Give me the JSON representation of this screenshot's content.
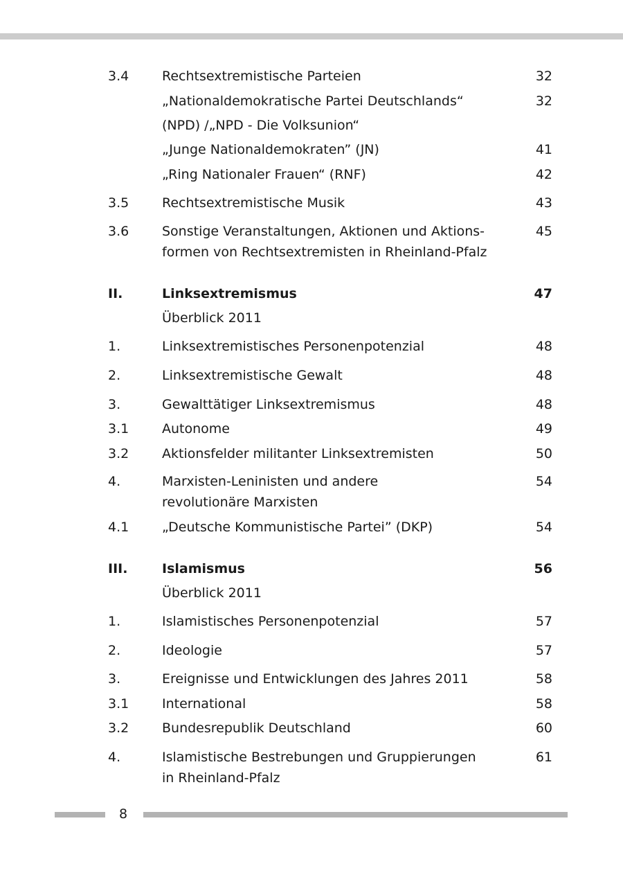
{
  "entries": [
    {
      "num": "3.4",
      "title": "Rechtsextremistische Parteien",
      "page": "32"
    },
    {
      "num": "",
      "title": "„Nationaldemokratische Partei Deutschlands“",
      "page": "32"
    },
    {
      "num": "",
      "title": "(NPD) /„NPD - Die Volksunion“",
      "page": ""
    },
    {
      "num": "",
      "title": "„Junge Nationaldemokraten” (JN)",
      "page": "41"
    },
    {
      "num": "",
      "title": "„Ring Nationaler Frauen“ (RNF)",
      "page": "42"
    },
    {
      "num": "3.5",
      "title": "Rechtsextremistische Musik",
      "page": "43"
    },
    {
      "num": "3.6",
      "title": "Sonstige Veranstaltungen, Aktionen und Aktions-\nformen von Rechtsextremisten in Rheinland-Pfalz",
      "page": "45"
    },
    {
      "num": "II.",
      "title": "Linksextremismus",
      "page": "47"
    },
    {
      "num": "",
      "title": "Überblick 2011",
      "page": ""
    },
    {
      "num": "1.",
      "title": "Linksextremistisches Personenpotenzial",
      "page": "48"
    },
    {
      "num": "2.",
      "title": "Linksextremistische Gewalt",
      "page": "48"
    },
    {
      "num": "3.",
      "title": "Gewalttätiger Linksextremismus",
      "page": "48"
    },
    {
      "num": "3.1",
      "title": "Autonome",
      "page": "49"
    },
    {
      "num": "3.2",
      "title": "Aktionsfelder militanter Linksextremisten",
      "page": "50"
    },
    {
      "num": "4.",
      "title": "Marxisten-Leninisten und andere\nrevolutionäre Marxisten",
      "page": "54"
    },
    {
      "num": "4.1",
      "title": "„Deutsche Kommunistische Partei” (DKP)",
      "page": "54"
    },
    {
      "num": "III.",
      "title": "Islamismus",
      "page": "56"
    },
    {
      "num": "",
      "title": "Überblick 2011",
      "page": ""
    },
    {
      "num": "1.",
      "title": "Islamistisches Personenpotenzial",
      "page": "57"
    },
    {
      "num": "2.",
      "title": "Ideologie",
      "page": "57"
    },
    {
      "num": "3.",
      "title": "Ereignisse und Entwicklungen des Jahres 2011",
      "page": "58"
    },
    {
      "num": "3.1",
      "title": "International",
      "page": "58"
    },
    {
      "num": "3.2",
      "title": "Bundesrepublik Deutschland",
      "page": "60"
    },
    {
      "num": "4.",
      "title": "Islamistische Bestrebungen und Gruppierungen\nin Rheinland-Pfalz",
      "page": "61"
    }
  ],
  "footer": {
    "page_number": "8"
  },
  "colors": {
    "bar": "#b3b3b3",
    "top_bar": "#cccccc"
  }
}
